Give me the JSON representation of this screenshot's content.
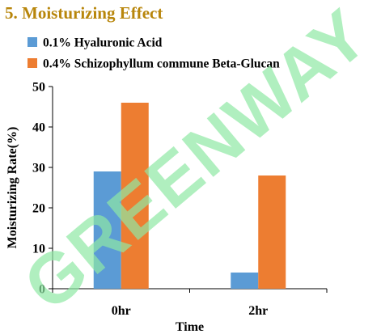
{
  "heading": "5. Moisturizing Effect",
  "watermark": "GREENWAY",
  "chart_data": {
    "type": "bar",
    "categories": [
      "0hr",
      "2hr"
    ],
    "series": [
      {
        "name": "0.1% Hyaluronic Acid",
        "values": [
          29,
          4
        ],
        "color": "#5b9bd5"
      },
      {
        "name": "0.4% Schizophyllum commune Beta-Glucan",
        "values": [
          46,
          28
        ],
        "color": "#ed7d31"
      }
    ],
    "title": "",
    "xlabel": "Time",
    "ylabel": "Moisturizing Rate(%)",
    "ylim": [
      0,
      50
    ],
    "yticks": [
      0,
      10,
      20,
      30,
      40,
      50
    ],
    "grid": false,
    "legend_position": "top-left"
  }
}
